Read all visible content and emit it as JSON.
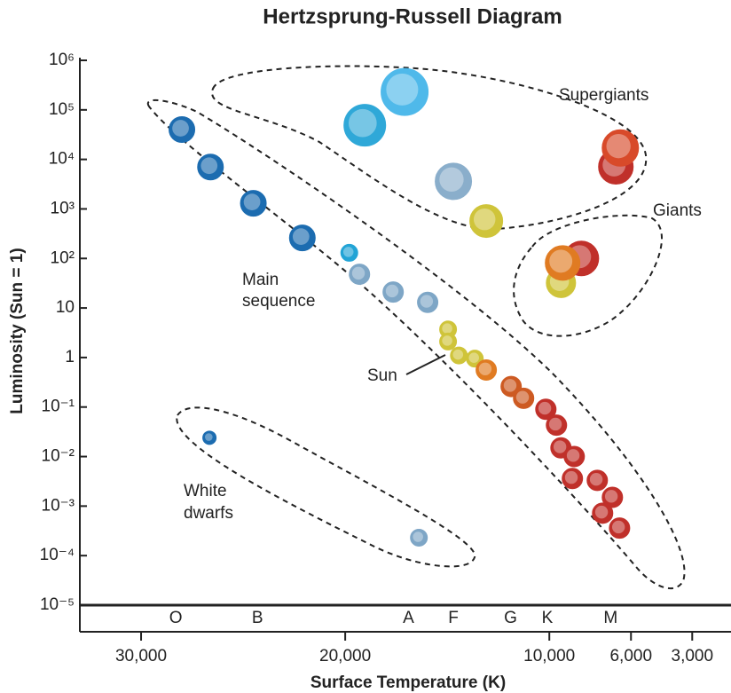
{
  "chart_data": {
    "type": "scatter",
    "title": "Hertzsprung-Russell Diagram",
    "x_label": "Surface Temperature (K)",
    "y_label": "Luminosity (Sun = 1)",
    "log_y": true,
    "xlim": [
      33000,
      1100
    ],
    "ylim": [
      1e-05,
      1000000
    ],
    "xticks": [
      {
        "value": 30000,
        "label": "30,000"
      },
      {
        "value": 20000,
        "label": "20,000"
      },
      {
        "value": 10000,
        "label": "10,000"
      },
      {
        "value": 6000,
        "label": "6,000"
      },
      {
        "value": 3000,
        "label": "3,000"
      }
    ],
    "yticks": [
      {
        "value": 1000000,
        "label": "10⁶"
      },
      {
        "value": 100000,
        "label": "10⁵"
      },
      {
        "value": 10000,
        "label": "10⁴"
      },
      {
        "value": 1000,
        "label": "10³"
      },
      {
        "value": 100,
        "label": "10²"
      },
      10,
      1,
      {
        "value": 0.1,
        "label": "10⁻¹"
      },
      {
        "value": 0.01,
        "label": "10⁻²"
      },
      {
        "value": 0.001,
        "label": "10⁻³"
      },
      {
        "value": 0.0001,
        "label": "10⁻⁴"
      },
      {
        "value": 1e-05,
        "label": "10⁻⁵"
      }
    ],
    "spectral_classes": {
      "labels": [
        "O",
        "B",
        "A",
        "F",
        "G",
        "K",
        "M"
      ],
      "x": [
        28300,
        24300,
        16900,
        14700,
        11900,
        10100,
        7000
      ]
    },
    "x": [
      28000,
      26600,
      24500,
      22100,
      19800,
      19300,
      17650,
      15960,
      14960,
      14960,
      14430,
      13650,
      13090,
      11870,
      11260,
      10170,
      9650,
      9430,
      8780,
      8870,
      7650,
      6910,
      7390,
      6560,
      26650,
      16390,
      17090,
      19040,
      14700,
      13090,
      6740,
      6520,
      8430,
      9430,
      9350
    ],
    "values": [
      40000,
      7000,
      1300,
      260,
      130,
      48,
      21,
      13,
      3.7,
      2.1,
      1.1,
      0.95,
      0.56,
      0.26,
      0.15,
      0.09,
      0.043,
      0.015,
      0.01,
      0.0036,
      0.0033,
      0.0015,
      0.00072,
      0.00036,
      0.024,
      0.00023,
      230000,
      49000,
      3600,
      570,
      7100,
      17000,
      100,
      32,
      81
    ],
    "sizes": [
      15,
      15,
      15,
      15,
      10,
      12,
      12,
      12,
      10,
      10,
      10,
      10,
      12,
      12,
      12,
      12,
      12,
      12,
      12,
      12,
      12,
      12,
      12,
      12,
      8,
      10,
      27,
      24,
      21,
      19,
      20,
      21,
      20,
      17,
      20
    ],
    "colors": [
      "#1c6cb0",
      "#1c6cb0",
      "#1c6cb0",
      "#1c6cb0",
      "#22a4d6",
      "#7ea6c6",
      "#7ea6c6",
      "#7ea6c6",
      "#cfc43a",
      "#cfc43a",
      "#cfc43a",
      "#cfc43a",
      "#e07b22",
      "#cd5a22",
      "#cd5a22",
      "#c0302a",
      "#c0302a",
      "#c0302a",
      "#c0302a",
      "#c0302a",
      "#c0302a",
      "#c0302a",
      "#c0302a",
      "#c0302a",
      "#1c6cb0",
      "#7ea6c6",
      "#4fb9ea",
      "#2fa8d8",
      "#8aaecb",
      "#cfc43a",
      "#c0302a",
      "#d84a2a",
      "#c0302a",
      "#cfc43a",
      "#e07b22"
    ],
    "annotations": {
      "supergiants": "Supergiants",
      "giants": "Giants",
      "main_sequence": [
        "Main",
        "sequence"
      ],
      "white_dwarfs": [
        "White",
        "dwarfs"
      ],
      "sun": "Sun"
    }
  }
}
